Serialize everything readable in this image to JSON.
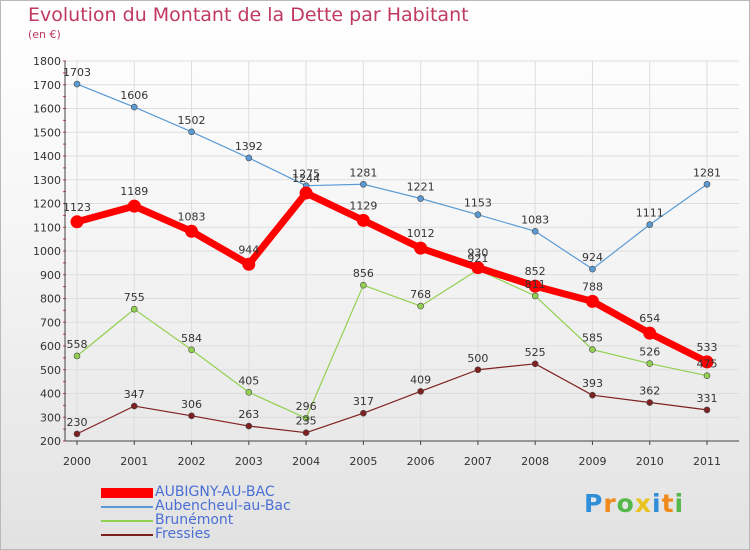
{
  "header": {
    "title": "Evolution du Montant de la Dette par Habitant",
    "subtitle": "(en €)"
  },
  "logo": {
    "text": "Proxiti",
    "colors": [
      "#2f8fd8",
      "#f08a1c",
      "#55b848",
      "#e8c31f"
    ]
  },
  "chart_data": {
    "type": "line",
    "x": [
      "2000",
      "2001",
      "2002",
      "2003",
      "2004",
      "2005",
      "2006",
      "2007",
      "2008",
      "2009",
      "2010",
      "2011"
    ],
    "ylim": [
      200,
      1800
    ],
    "yticks": [
      200,
      300,
      400,
      500,
      600,
      700,
      800,
      900,
      1000,
      1100,
      1200,
      1300,
      1400,
      1500,
      1600,
      1700,
      1800
    ],
    "grid": true,
    "legend_position": "bottom-left",
    "series": [
      {
        "name": "AUBIGNY-AU-BAC",
        "color": "#ff0000",
        "values": [
          1123,
          1189,
          1083,
          944,
          1244,
          1129,
          1012,
          930,
          852,
          788,
          654,
          533
        ]
      },
      {
        "name": "Aubencheul-au-Bac",
        "color": "#5b9bd5",
        "values": [
          1703,
          1606,
          1502,
          1392,
          1275,
          1281,
          1221,
          1153,
          1083,
          924,
          1111,
          1281
        ]
      },
      {
        "name": "Brunémont",
        "color": "#92d050",
        "values": [
          558,
          755,
          584,
          405,
          296,
          856,
          768,
          921,
          811,
          585,
          526,
          475
        ]
      },
      {
        "name": "Fressies",
        "color": "#7f2020",
        "values": [
          230,
          347,
          306,
          263,
          235,
          317,
          409,
          500,
          525,
          393,
          362,
          331
        ]
      }
    ]
  }
}
